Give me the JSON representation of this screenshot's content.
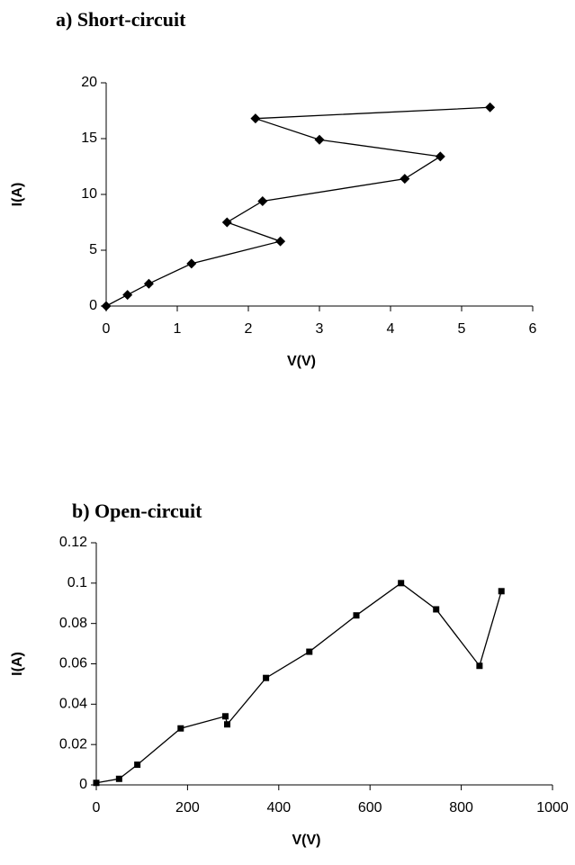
{
  "chart_data": [
    {
      "type": "line",
      "title": "a) Short-circuit",
      "xlabel": "V(V)",
      "ylabel": "I(A)",
      "x": [
        0,
        0.3,
        0.6,
        1.2,
        2.45,
        1.7,
        2.2,
        4.2,
        4.7,
        3.0,
        2.1,
        5.4
      ],
      "series": [
        {
          "name": "I(A)",
          "color": "#000000",
          "marker": "diamond",
          "values": [
            0,
            1.0,
            2.0,
            3.8,
            5.8,
            7.5,
            9.4,
            11.4,
            13.4,
            14.9,
            16.8,
            17.8
          ]
        }
      ],
      "xlim": [
        0,
        6
      ],
      "xticks": [
        0,
        1,
        2,
        3,
        4,
        5,
        6
      ],
      "ylim": [
        0,
        20
      ],
      "yticks": [
        0,
        5,
        10,
        15,
        20
      ],
      "grid": false
    },
    {
      "type": "line",
      "title": "b) Open-circuit",
      "xlabel": "V(V)",
      "ylabel": "I(A)",
      "x": [
        0,
        50,
        90,
        185,
        283,
        287,
        372,
        467,
        570,
        668,
        745,
        840,
        888
      ],
      "series": [
        {
          "name": "I(A)",
          "color": "#000000",
          "marker": "square",
          "values": [
            0.001,
            0.003,
            0.01,
            0.028,
            0.034,
            0.03,
            0.053,
            0.066,
            0.084,
            0.1,
            0.087,
            0.059,
            0.096
          ]
        }
      ],
      "xlim": [
        0,
        1000
      ],
      "xticks": [
        0,
        200,
        400,
        600,
        800,
        1000
      ],
      "ylim": [
        0,
        0.12
      ],
      "yticks": [
        0,
        0.02,
        0.04,
        0.06,
        0.08,
        0.1,
        0.12
      ],
      "grid": false
    }
  ]
}
